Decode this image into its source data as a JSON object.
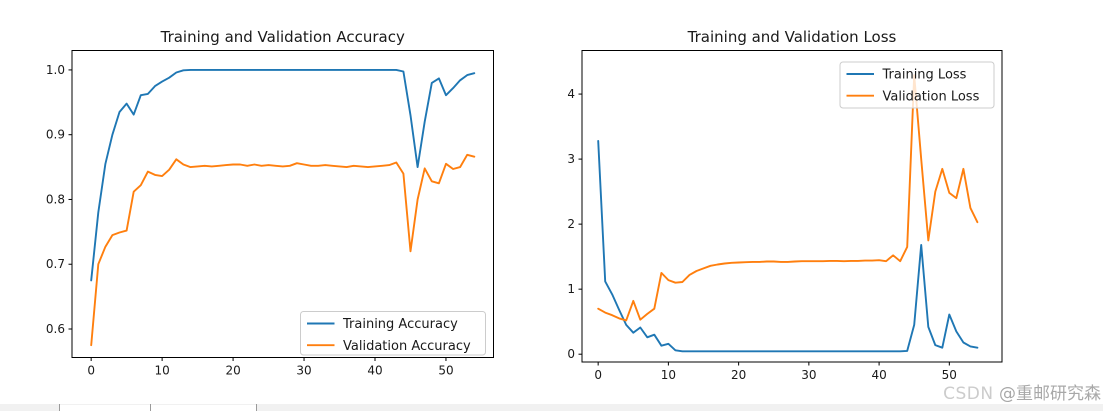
{
  "figure": {
    "background": "#ffffff"
  },
  "watermark": {
    "brand": "CSDN",
    "handle": "@重邮研究森",
    "brand_color": "#cccccc",
    "handle_color": "#a8a8a8"
  },
  "bottom_bar": {
    "background": "#f1f1f1",
    "tab_background": "#ffffff",
    "separator_color": "#9a9a9a"
  },
  "chart_data": [
    {
      "type": "line",
      "title": "Training and Validation Accuracy",
      "xlabel": "",
      "ylabel": "",
      "grid": false,
      "legend_position": "lower right",
      "xlim": [
        -2.7,
        56.7
      ],
      "ylim": [
        0.556,
        1.03
      ],
      "xticks": [
        0,
        10,
        20,
        30,
        40,
        50
      ],
      "xtick_labels": [
        "0",
        "10",
        "20",
        "30",
        "40",
        "50"
      ],
      "yticks": [
        0.6,
        0.7,
        0.8,
        0.9,
        1.0
      ],
      "ytick_labels": [
        "0.6",
        "0.7",
        "0.8",
        "0.9",
        "1.0"
      ],
      "x": [
        0,
        1,
        2,
        3,
        4,
        5,
        6,
        7,
        8,
        9,
        10,
        11,
        12,
        13,
        14,
        15,
        16,
        17,
        18,
        19,
        20,
        21,
        22,
        23,
        24,
        25,
        26,
        27,
        28,
        29,
        30,
        31,
        32,
        33,
        34,
        35,
        36,
        37,
        38,
        39,
        40,
        41,
        42,
        43,
        44,
        45,
        46,
        47,
        48,
        49,
        50,
        51,
        52,
        53,
        54
      ],
      "series": [
        {
          "name": "Training Accuracy",
          "color": "#1f77b4",
          "values": [
            0.675,
            0.78,
            0.855,
            0.9,
            0.935,
            0.948,
            0.931,
            0.961,
            0.963,
            0.975,
            0.982,
            0.988,
            0.996,
            0.9995,
            1.0,
            1.0,
            1.0,
            1.0,
            1.0,
            1.0,
            1.0,
            1.0,
            1.0,
            1.0,
            1.0,
            1.0,
            1.0,
            1.0,
            1.0,
            1.0,
            1.0,
            1.0,
            1.0,
            1.0,
            1.0,
            1.0,
            1.0,
            1.0,
            1.0,
            1.0,
            1.0,
            1.0,
            1.0,
            1.0,
            0.9975,
            0.93,
            0.85,
            0.92,
            0.98,
            0.987,
            0.961,
            0.972,
            0.984,
            0.992,
            0.995
          ]
        },
        {
          "name": "Validation Accuracy",
          "color": "#ff7f0e",
          "values": [
            0.575,
            0.7,
            0.727,
            0.745,
            0.749,
            0.752,
            0.812,
            0.822,
            0.843,
            0.838,
            0.836,
            0.846,
            0.862,
            0.854,
            0.85,
            0.851,
            0.852,
            0.851,
            0.852,
            0.853,
            0.854,
            0.854,
            0.852,
            0.854,
            0.852,
            0.853,
            0.852,
            0.851,
            0.852,
            0.856,
            0.854,
            0.852,
            0.852,
            0.853,
            0.852,
            0.851,
            0.85,
            0.852,
            0.851,
            0.85,
            0.851,
            0.852,
            0.853,
            0.857,
            0.84,
            0.72,
            0.8,
            0.848,
            0.828,
            0.825,
            0.855,
            0.847,
            0.85,
            0.869,
            0.866
          ]
        }
      ]
    },
    {
      "type": "line",
      "title": "Training and Validation Loss",
      "xlabel": "",
      "ylabel": "",
      "grid": false,
      "legend_position": "upper right",
      "xlim": [
        -2.3,
        57.5
      ],
      "ylim": [
        -0.12,
        4.67
      ],
      "xticks": [
        0,
        10,
        20,
        30,
        40,
        50
      ],
      "xtick_labels": [
        "0",
        "10",
        "20",
        "30",
        "40",
        "50"
      ],
      "yticks": [
        0,
        1,
        2,
        3,
        4
      ],
      "ytick_labels": [
        "0",
        "1",
        "2",
        "3",
        "4"
      ],
      "x": [
        0,
        1,
        2,
        3,
        4,
        5,
        6,
        7,
        8,
        9,
        10,
        11,
        12,
        13,
        14,
        15,
        16,
        17,
        18,
        19,
        20,
        21,
        22,
        23,
        24,
        25,
        26,
        27,
        28,
        29,
        30,
        31,
        32,
        33,
        34,
        35,
        36,
        37,
        38,
        39,
        40,
        41,
        42,
        43,
        44,
        45,
        46,
        47,
        48,
        49,
        50,
        51,
        52,
        53,
        54
      ],
      "series": [
        {
          "name": "Training Loss",
          "color": "#1f77b4",
          "values": [
            3.28,
            1.12,
            0.92,
            0.68,
            0.45,
            0.33,
            0.41,
            0.26,
            0.3,
            0.13,
            0.16,
            0.06,
            0.045,
            0.045,
            0.045,
            0.045,
            0.045,
            0.045,
            0.045,
            0.045,
            0.045,
            0.045,
            0.045,
            0.045,
            0.045,
            0.045,
            0.045,
            0.045,
            0.045,
            0.045,
            0.045,
            0.045,
            0.045,
            0.045,
            0.045,
            0.045,
            0.045,
            0.045,
            0.045,
            0.045,
            0.045,
            0.045,
            0.045,
            0.045,
            0.05,
            0.45,
            1.68,
            0.42,
            0.14,
            0.1,
            0.61,
            0.35,
            0.18,
            0.12,
            0.1
          ]
        },
        {
          "name": "Validation Loss",
          "color": "#ff7f0e",
          "values": [
            0.7,
            0.64,
            0.6,
            0.55,
            0.52,
            0.82,
            0.53,
            0.62,
            0.7,
            1.25,
            1.14,
            1.1,
            1.11,
            1.22,
            1.28,
            1.32,
            1.36,
            1.38,
            1.395,
            1.405,
            1.41,
            1.415,
            1.42,
            1.42,
            1.425,
            1.425,
            1.42,
            1.42,
            1.425,
            1.43,
            1.43,
            1.43,
            1.43,
            1.435,
            1.435,
            1.43,
            1.435,
            1.435,
            1.44,
            1.44,
            1.445,
            1.43,
            1.52,
            1.43,
            1.65,
            4.29,
            3.0,
            1.75,
            2.5,
            2.85,
            2.48,
            2.4,
            2.85,
            2.25,
            2.03
          ]
        }
      ]
    }
  ],
  "style": {
    "axis_color": "#000000",
    "text_color": "#1a1a1a",
    "legend_border_color": "#cccccc",
    "legend_fill": "rgba(255,255,255,0.8)"
  }
}
